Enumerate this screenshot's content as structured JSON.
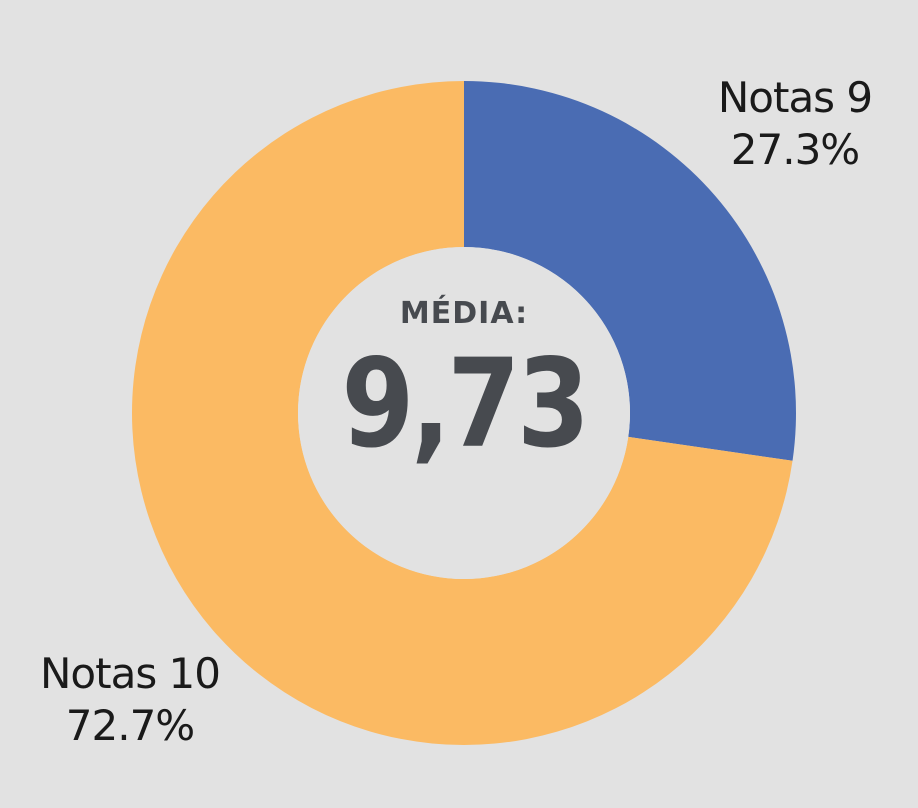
{
  "chart_data": {
    "type": "pie",
    "variant": "donut",
    "slices": [
      {
        "label": "Notas 9",
        "percent_label": "27.3%",
        "value": 27.3,
        "color": "#4a6cb3"
      },
      {
        "label": "Notas 10",
        "percent_label": "72.7%",
        "value": 72.7,
        "color": "#fbba63"
      }
    ],
    "center": {
      "caption": "MÉDIA:",
      "value": "9,73"
    },
    "legend": "none"
  },
  "colors": {
    "background": "#e2e2e2",
    "center_text": "#474a4f"
  }
}
